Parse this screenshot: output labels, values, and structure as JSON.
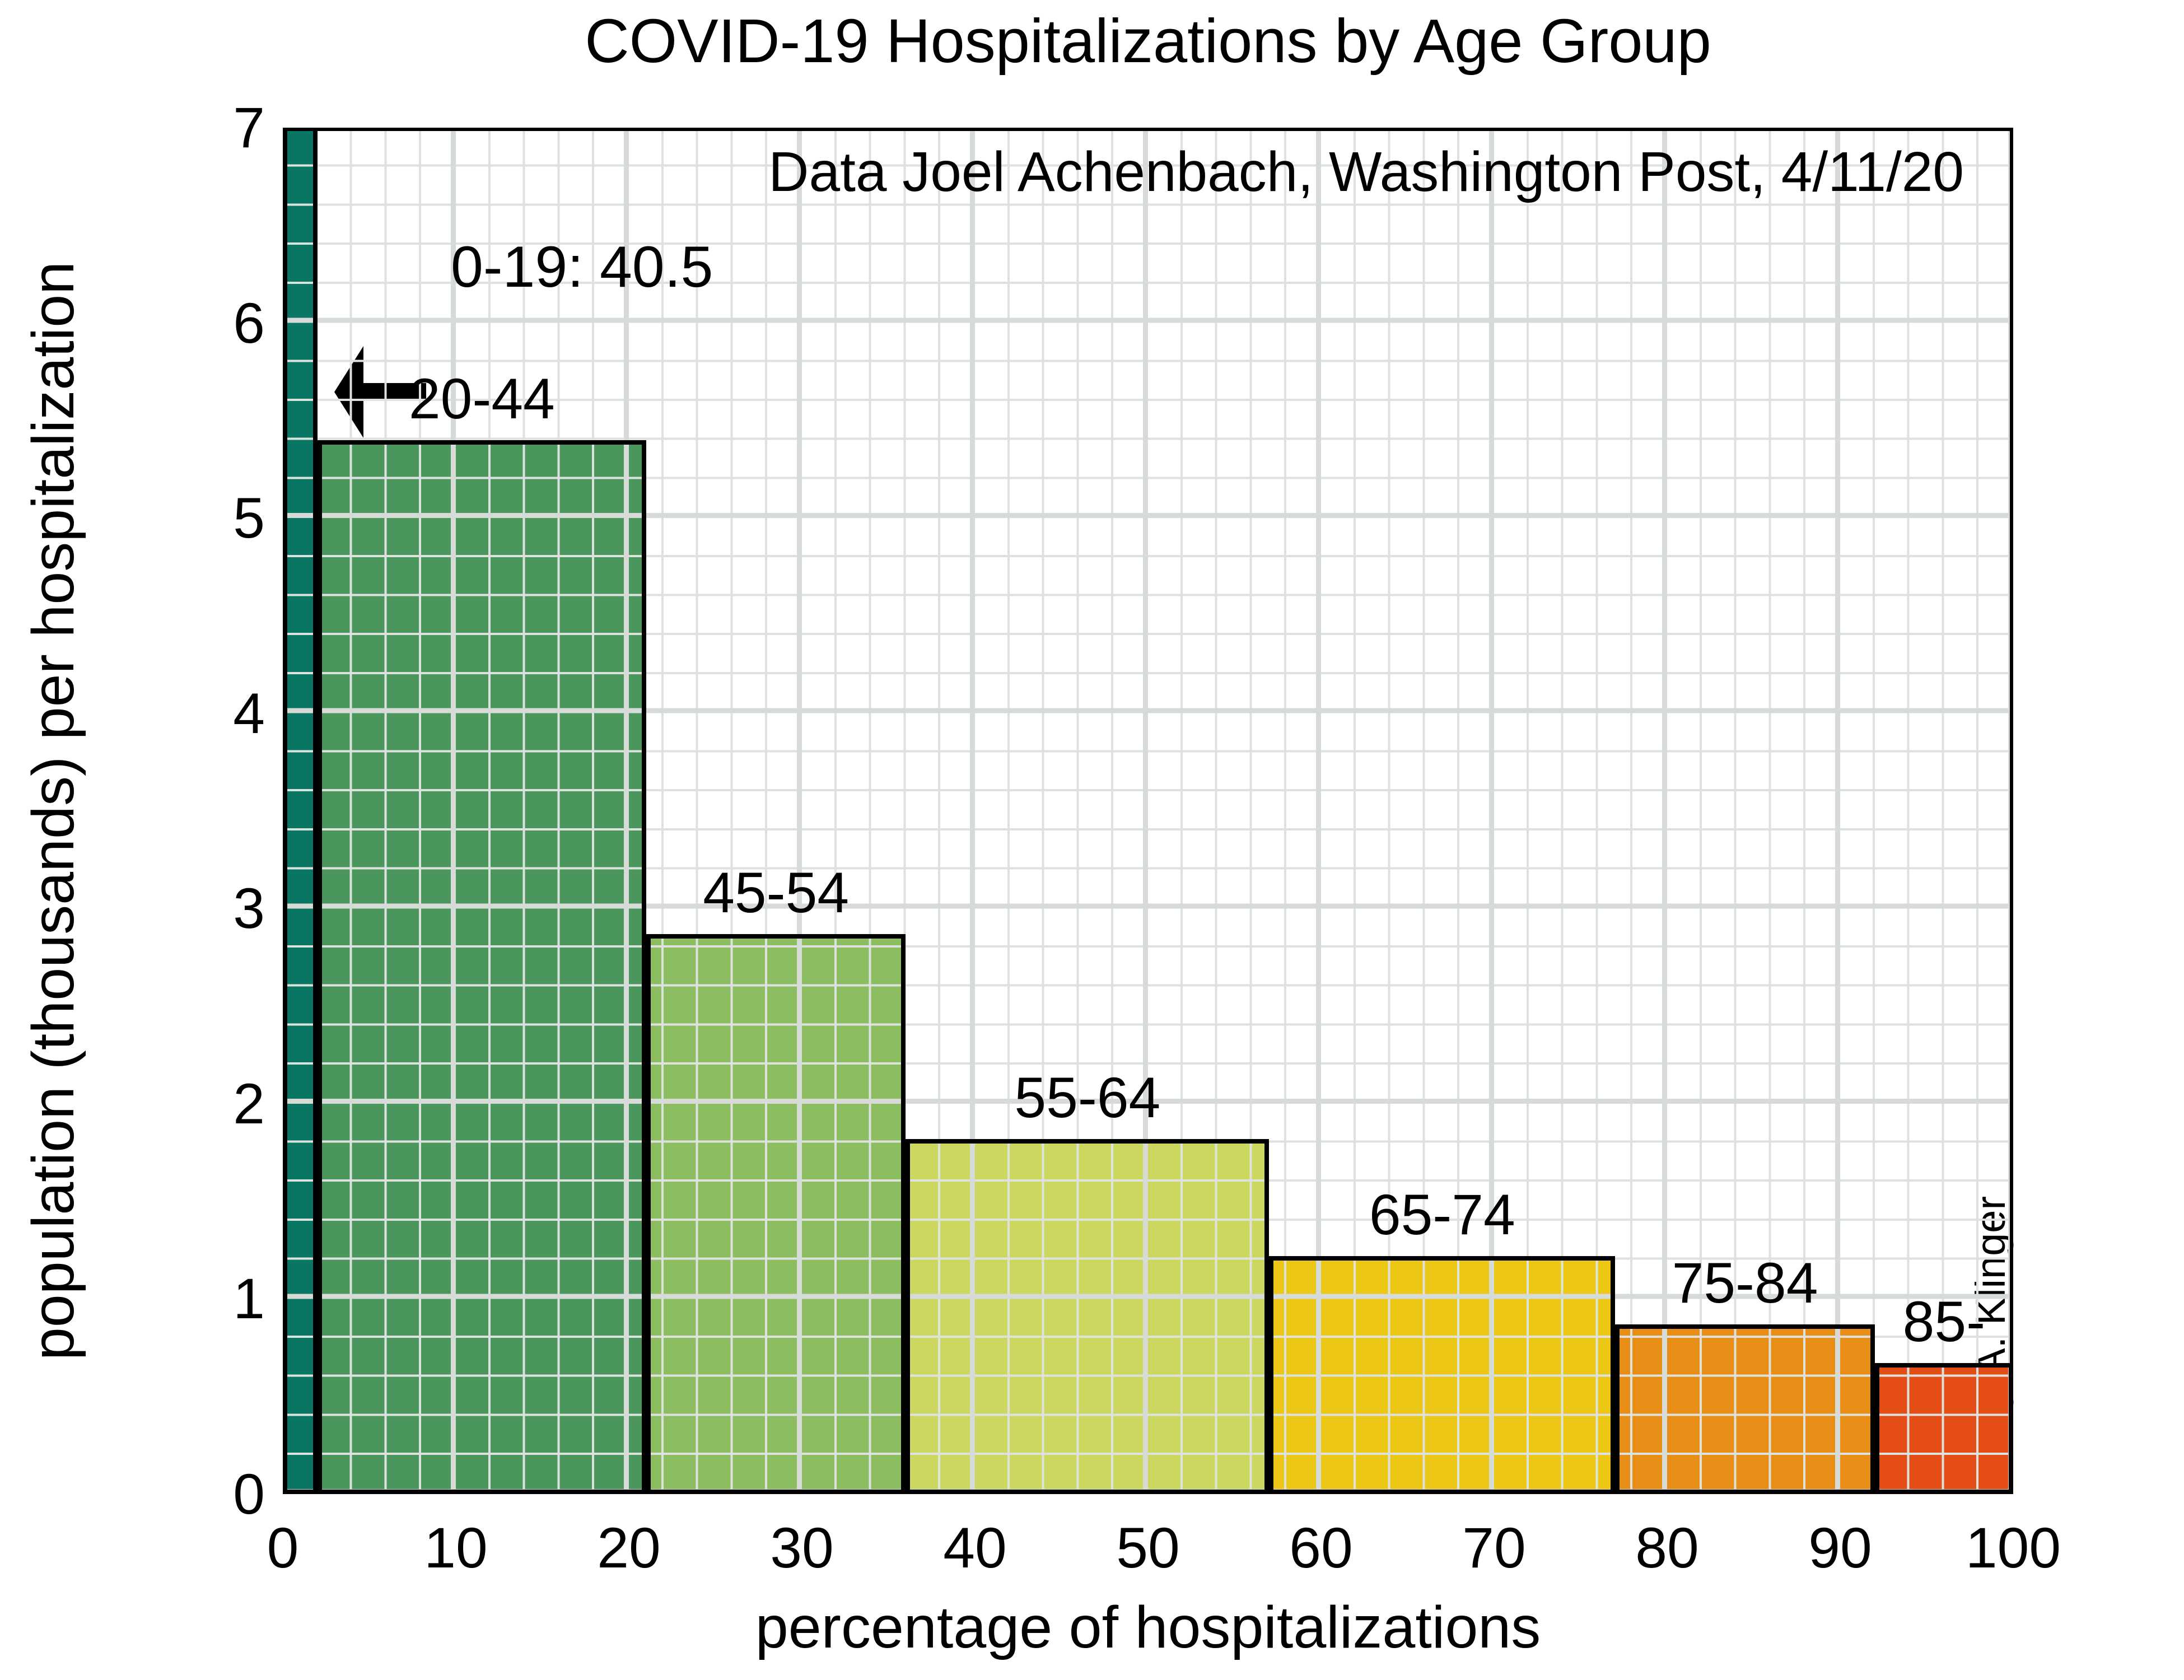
{
  "title": "COVID-19 Hospitalizations by Age Group",
  "annotations": {
    "source_note": "Data Joel Achenbach, Washington Post, 4/11/20",
    "offscale_label": "0-19: 40.5",
    "offscale_arrow_icon": "left-arrow-icon",
    "signature": "Barry A. Klinger"
  },
  "axes": {
    "xlabel": "percentage of hospitalizations",
    "ylabel": "population (thousands) per hospitalization",
    "x_ticks": [
      0,
      10,
      20,
      30,
      40,
      50,
      60,
      70,
      80,
      90,
      100
    ],
    "y_ticks": [
      0,
      1,
      2,
      3,
      4,
      5,
      6,
      7
    ]
  },
  "chart_data": {
    "type": "bar",
    "subtype": "variable-width-histogram",
    "title": "COVID-19 Hospitalizations by Age Group",
    "xlabel": "percentage of hospitalizations",
    "ylabel": "population (thousands) per hospitalization",
    "xlim": [
      0,
      100
    ],
    "ylim": [
      0,
      7
    ],
    "grid": {
      "major_x": 10,
      "minor_x": 2,
      "major_y": 1,
      "minor_y": 0.2,
      "grid_on_top_of_bars": true
    },
    "bars": [
      {
        "label": "0-19",
        "x_start": 0,
        "x_end": 2,
        "share_percent": 2,
        "value": 40.5,
        "clipped_at_ylim": true,
        "color": "#097663"
      },
      {
        "label": "20-44",
        "x_start": 2,
        "x_end": 21,
        "share_percent": 19,
        "value": 5.4,
        "clipped_at_ylim": false,
        "color": "#4a965c"
      },
      {
        "label": "45-54",
        "x_start": 21,
        "x_end": 36,
        "share_percent": 15,
        "value": 2.87,
        "clipped_at_ylim": false,
        "color": "#8cbd60"
      },
      {
        "label": "55-64",
        "x_start": 36,
        "x_end": 57,
        "share_percent": 21,
        "value": 1.82,
        "clipped_at_ylim": false,
        "color": "#cbd75e"
      },
      {
        "label": "65-74",
        "x_start": 57,
        "x_end": 77,
        "share_percent": 20,
        "value": 1.22,
        "clipped_at_ylim": false,
        "color": "#ecc716"
      },
      {
        "label": "75-84",
        "x_start": 77,
        "x_end": 92,
        "share_percent": 15,
        "value": 0.87,
        "clipped_at_ylim": false,
        "color": "#e88d15"
      },
      {
        "label": "85-",
        "x_start": 92,
        "x_end": 100,
        "share_percent": 8,
        "value": 0.67,
        "clipped_at_ylim": false,
        "color": "#e44d15"
      }
    ],
    "legend": null,
    "colors_note": "green-to-red sequence by increasing age"
  }
}
